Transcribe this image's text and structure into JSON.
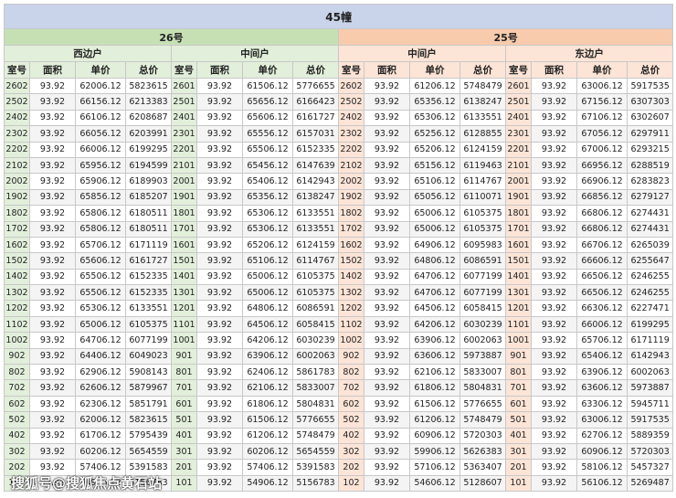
{
  "header": {
    "title": "45幢"
  },
  "columns": [
    "室号",
    "面积",
    "单价",
    "总价"
  ],
  "buildings": [
    {
      "name": "26号",
      "sections": [
        {
          "name": "西边户",
          "rows": [
            [
              2602,
              93.92,
              62006.12,
              5823615
            ],
            [
              2502,
              93.92,
              66156.12,
              6213383
            ],
            [
              2402,
              93.92,
              66106.12,
              6208687
            ],
            [
              2302,
              93.92,
              66056.12,
              6203991
            ],
            [
              2202,
              93.92,
              66006.12,
              6199295
            ],
            [
              2102,
              93.92,
              65956.12,
              6194599
            ],
            [
              2002,
              93.92,
              65906.12,
              6189903
            ],
            [
              1902,
              93.92,
              65856.12,
              6185207
            ],
            [
              1802,
              93.92,
              65806.12,
              6180511
            ],
            [
              1702,
              93.92,
              65806.12,
              6180511
            ],
            [
              1602,
              93.92,
              65706.12,
              6171119
            ],
            [
              1502,
              93.92,
              65606.12,
              6161727
            ],
            [
              1402,
              93.92,
              65506.12,
              6152335
            ],
            [
              1302,
              93.92,
              65506.12,
              6152335
            ],
            [
              1202,
              93.92,
              65306.12,
              6133551
            ],
            [
              1102,
              93.92,
              65006.12,
              6105375
            ],
            [
              1002,
              93.92,
              64706.12,
              6077199
            ],
            [
              902,
              93.92,
              64406.12,
              6049023
            ],
            [
              802,
              93.92,
              62906.12,
              5908143
            ],
            [
              702,
              93.92,
              62606.12,
              5879967
            ],
            [
              602,
              93.92,
              62306.12,
              5851791
            ],
            [
              502,
              93.92,
              62006.12,
              5823615
            ],
            [
              402,
              93.92,
              61706.12,
              5795439
            ],
            [
              302,
              93.92,
              60206.12,
              5654559
            ],
            [
              202,
              93.92,
              57406.12,
              5391583
            ],
            [
              102,
              93.92,
              54906.12,
              5156783
            ]
          ]
        },
        {
          "name": "中间户",
          "rows": [
            [
              2601,
              93.92,
              61506.12,
              5776655
            ],
            [
              2501,
              93.92,
              65656.12,
              6166423
            ],
            [
              2401,
              93.92,
              65606.12,
              6161727
            ],
            [
              2301,
              93.92,
              65556.12,
              6157031
            ],
            [
              2201,
              93.92,
              65506.12,
              6152335
            ],
            [
              2101,
              93.92,
              65456.12,
              6147639
            ],
            [
              2001,
              93.92,
              65406.12,
              6142943
            ],
            [
              1901,
              93.92,
              65356.12,
              6138247
            ],
            [
              1801,
              93.92,
              65306.12,
              6133551
            ],
            [
              1701,
              93.92,
              65306.12,
              6133551
            ],
            [
              1601,
              93.92,
              65206.12,
              6124159
            ],
            [
              1501,
              93.92,
              65106.12,
              6114767
            ],
            [
              1401,
              93.92,
              65006.12,
              6105375
            ],
            [
              1301,
              93.92,
              65006.12,
              6105375
            ],
            [
              1201,
              93.92,
              64806.12,
              6086591
            ],
            [
              1101,
              93.92,
              64506.12,
              6058415
            ],
            [
              1001,
              93.92,
              64206.12,
              6030239
            ],
            [
              901,
              93.92,
              63906.12,
              6002063
            ],
            [
              801,
              93.92,
              62406.12,
              5861783
            ],
            [
              701,
              93.92,
              62106.12,
              5833007
            ],
            [
              601,
              93.92,
              61806.12,
              5804831
            ],
            [
              501,
              93.92,
              61506.12,
              5776655
            ],
            [
              401,
              93.92,
              61206.12,
              5748479
            ],
            [
              301,
              93.92,
              60206.12,
              5654559
            ],
            [
              201,
              93.92,
              57406.12,
              5391583
            ],
            [
              101,
              93.92,
              54906.12,
              5156783
            ]
          ]
        }
      ]
    },
    {
      "name": "25号",
      "sections": [
        {
          "name": "中间户",
          "rows": [
            [
              2602,
              93.92,
              61206.12,
              5748479
            ],
            [
              2502,
              93.92,
              65356.12,
              6138247
            ],
            [
              2402,
              93.92,
              65306.12,
              6133551
            ],
            [
              2302,
              93.92,
              65256.12,
              6128855
            ],
            [
              2202,
              93.92,
              65206.12,
              6124159
            ],
            [
              2102,
              93.92,
              65156.12,
              6119463
            ],
            [
              2002,
              93.92,
              65106.12,
              6114767
            ],
            [
              1902,
              93.92,
              65056.12,
              6110071
            ],
            [
              1802,
              93.92,
              65006.12,
              6105375
            ],
            [
              1702,
              93.92,
              65006.12,
              6105375
            ],
            [
              1602,
              93.92,
              64906.12,
              6095983
            ],
            [
              1502,
              93.92,
              64806.12,
              6086591
            ],
            [
              1402,
              93.92,
              64706.12,
              6077199
            ],
            [
              1302,
              93.92,
              64706.12,
              6077199
            ],
            [
              1202,
              93.92,
              64506.12,
              6058415
            ],
            [
              1102,
              93.92,
              64206.12,
              6030239
            ],
            [
              1002,
              93.92,
              63906.12,
              6002063
            ],
            [
              902,
              93.92,
              63606.12,
              5973887
            ],
            [
              802,
              93.92,
              62106.12,
              5833007
            ],
            [
              702,
              93.92,
              61806.12,
              5804831
            ],
            [
              602,
              93.92,
              61506.12,
              5776655
            ],
            [
              502,
              93.92,
              61206.12,
              5748479
            ],
            [
              402,
              93.92,
              60906.12,
              5720303
            ],
            [
              302,
              93.92,
              59906.12,
              5626383
            ],
            [
              202,
              93.92,
              57106.12,
              5363407
            ],
            [
              102,
              93.92,
              54606.12,
              5128607
            ]
          ]
        },
        {
          "name": "东边户",
          "rows": [
            [
              2601,
              93.92,
              63006.12,
              5917535
            ],
            [
              2501,
              93.92,
              67156.12,
              6307303
            ],
            [
              2401,
              93.92,
              67106.12,
              6302607
            ],
            [
              2301,
              93.92,
              67056.12,
              6297911
            ],
            [
              2201,
              93.92,
              67006.12,
              6293215
            ],
            [
              2101,
              93.92,
              66956.12,
              6288519
            ],
            [
              2001,
              93.92,
              66906.12,
              6283823
            ],
            [
              1901,
              93.92,
              66856.12,
              6279127
            ],
            [
              1801,
              93.92,
              66806.12,
              6274431
            ],
            [
              1701,
              93.92,
              66806.12,
              6274431
            ],
            [
              1601,
              93.92,
              66706.12,
              6265039
            ],
            [
              1501,
              93.92,
              66606.12,
              6255647
            ],
            [
              1401,
              93.92,
              66506.12,
              6246255
            ],
            [
              1301,
              93.92,
              66506.12,
              6246255
            ],
            [
              1201,
              93.92,
              66306.12,
              6227471
            ],
            [
              1101,
              93.92,
              66006.12,
              6199295
            ],
            [
              1001,
              93.92,
              65706.12,
              6171119
            ],
            [
              901,
              93.92,
              65406.12,
              6142943
            ],
            [
              801,
              93.92,
              63906.12,
              6002063
            ],
            [
              701,
              93.92,
              63606.12,
              5973887
            ],
            [
              601,
              93.92,
              63306.12,
              5945711
            ],
            [
              501,
              93.92,
              63006.12,
              5917535
            ],
            [
              401,
              93.92,
              62706.12,
              5889359
            ],
            [
              301,
              93.92,
              60906.12,
              5720303
            ],
            [
              201,
              93.92,
              58106.12,
              5457327
            ],
            [
              101,
              93.92,
              56106.12,
              5269487
            ]
          ]
        }
      ]
    }
  ],
  "watermark": "搜狐号@搜狐焦点黄石站"
}
